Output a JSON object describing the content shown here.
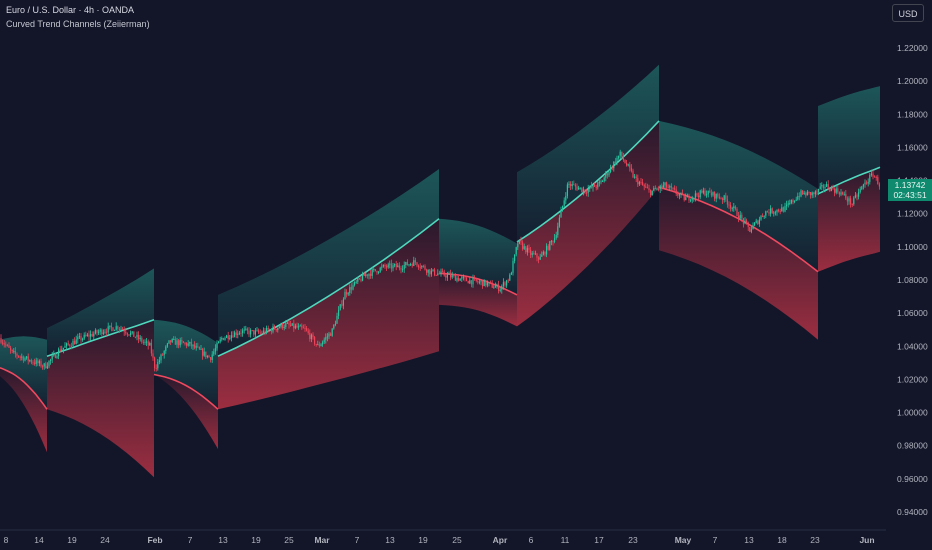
{
  "header": {
    "title": "Euro / U.S. Dollar · 4h · OANDA",
    "indicator": "Curved Trend Channels (Zeiierman)"
  },
  "price_axis": {
    "currency": "USD"
  },
  "last_price": {
    "value": "1.13742",
    "countdown": "02:43:51"
  },
  "colors": {
    "background": "#131529",
    "bull": "#26c6a0",
    "bear": "#ef4258",
    "line_up": "#4fd8bd",
    "line_down": "#f0485e",
    "upper_fill": "#1d5a5c",
    "lower_fill": "#a32f42"
  },
  "chart_data": {
    "type": "line",
    "title": "",
    "xlabel": "",
    "ylabel": "",
    "ylim": [
      0.93,
      1.236
    ],
    "x_ticks": [
      "8",
      "14",
      "19",
      "24",
      "Feb",
      "7",
      "13",
      "19",
      "25",
      "Mar",
      "7",
      "13",
      "19",
      "25",
      "Apr",
      "6",
      "11",
      "17",
      "23",
      "May",
      "7",
      "13",
      "18",
      "23",
      "Jun"
    ],
    "y_ticks": [
      "0.94000",
      "0.96000",
      "0.98000",
      "1.00000",
      "1.02000",
      "1.04000",
      "1.06000",
      "1.08000",
      "1.10000",
      "1.12000",
      "1.14000",
      "1.16000",
      "1.18000",
      "1.20000",
      "1.22000"
    ],
    "price_path": [
      {
        "t": 0,
        "p": 1.045
      },
      {
        "t": 12,
        "p": 1.036
      },
      {
        "t": 28,
        "p": 1.032
      },
      {
        "t": 45,
        "p": 1.028
      },
      {
        "t": 60,
        "p": 1.038
      },
      {
        "t": 78,
        "p": 1.044
      },
      {
        "t": 100,
        "p": 1.049
      },
      {
        "t": 118,
        "p": 1.052
      },
      {
        "t": 135,
        "p": 1.046
      },
      {
        "t": 150,
        "p": 1.04
      },
      {
        "t": 155,
        "p": 1.027
      },
      {
        "t": 170,
        "p": 1.043
      },
      {
        "t": 190,
        "p": 1.041
      },
      {
        "t": 210,
        "p": 1.033
      },
      {
        "t": 222,
        "p": 1.045
      },
      {
        "t": 240,
        "p": 1.049
      },
      {
        "t": 260,
        "p": 1.048
      },
      {
        "t": 285,
        "p": 1.053
      },
      {
        "t": 305,
        "p": 1.05
      },
      {
        "t": 318,
        "p": 1.04
      },
      {
        "t": 332,
        "p": 1.049
      },
      {
        "t": 345,
        "p": 1.072
      },
      {
        "t": 365,
        "p": 1.083
      },
      {
        "t": 385,
        "p": 1.088
      },
      {
        "t": 400,
        "p": 1.088
      },
      {
        "t": 415,
        "p": 1.091
      },
      {
        "t": 430,
        "p": 1.085
      },
      {
        "t": 445,
        "p": 1.083
      },
      {
        "t": 465,
        "p": 1.08
      },
      {
        "t": 485,
        "p": 1.078
      },
      {
        "t": 500,
        "p": 1.075
      },
      {
        "t": 510,
        "p": 1.082
      },
      {
        "t": 518,
        "p": 1.103
      },
      {
        "t": 530,
        "p": 1.096
      },
      {
        "t": 540,
        "p": 1.093
      },
      {
        "t": 555,
        "p": 1.106
      },
      {
        "t": 568,
        "p": 1.138
      },
      {
        "t": 585,
        "p": 1.134
      },
      {
        "t": 600,
        "p": 1.138
      },
      {
        "t": 620,
        "p": 1.156
      },
      {
        "t": 635,
        "p": 1.141
      },
      {
        "t": 650,
        "p": 1.133
      },
      {
        "t": 665,
        "p": 1.137
      },
      {
        "t": 685,
        "p": 1.129
      },
      {
        "t": 705,
        "p": 1.133
      },
      {
        "t": 725,
        "p": 1.129
      },
      {
        "t": 740,
        "p": 1.118
      },
      {
        "t": 750,
        "p": 1.11
      },
      {
        "t": 765,
        "p": 1.121
      },
      {
        "t": 785,
        "p": 1.123
      },
      {
        "t": 800,
        "p": 1.132
      },
      {
        "t": 815,
        "p": 1.132
      },
      {
        "t": 825,
        "p": 1.137
      },
      {
        "t": 840,
        "p": 1.133
      },
      {
        "t": 852,
        "p": 1.126
      },
      {
        "t": 862,
        "p": 1.136
      },
      {
        "t": 873,
        "p": 1.144
      },
      {
        "t": 880,
        "p": 1.137
      }
    ],
    "channels": [
      {
        "x0": 0,
        "x1": 47,
        "dir": "down",
        "trend": [
          1.027,
          1.002
        ],
        "top": [
          1.044,
          1.044
        ],
        "bottom": [
          1.022,
          0.976
        ]
      },
      {
        "x0": 47,
        "x1": 154,
        "dir": "up",
        "trend": [
          1.034,
          1.056
        ],
        "top": [
          1.051,
          1.087
        ],
        "bottom": [
          1.002,
          0.961
        ]
      },
      {
        "x0": 154,
        "x1": 218,
        "dir": "down",
        "trend": [
          1.023,
          1.002
        ],
        "top": [
          1.056,
          1.042
        ],
        "bottom": [
          1.023,
          0.978
        ]
      },
      {
        "x0": 218,
        "x1": 439,
        "dir": "up",
        "trend": [
          1.034,
          1.117
        ],
        "top": [
          1.071,
          1.147
        ],
        "bottom": [
          1.002,
          1.037
        ]
      },
      {
        "x0": 439,
        "x1": 517,
        "dir": "down",
        "trend": [
          1.084,
          1.071
        ],
        "top": [
          1.117,
          1.102
        ],
        "bottom": [
          1.065,
          1.052
        ]
      },
      {
        "x0": 517,
        "x1": 659,
        "dir": "up",
        "trend": [
          1.103,
          1.176
        ],
        "top": [
          1.145,
          1.21
        ],
        "bottom": [
          1.052,
          1.136
        ]
      },
      {
        "x0": 659,
        "x1": 818,
        "dir": "down",
        "trend": [
          1.136,
          1.085
        ],
        "top": [
          1.176,
          1.135
        ],
        "bottom": [
          1.098,
          1.044
        ]
      },
      {
        "x0": 818,
        "x1": 880,
        "dir": "up",
        "trend": [
          1.132,
          1.148
        ],
        "top": [
          1.185,
          1.197
        ],
        "bottom": [
          1.085,
          1.097
        ]
      }
    ]
  }
}
